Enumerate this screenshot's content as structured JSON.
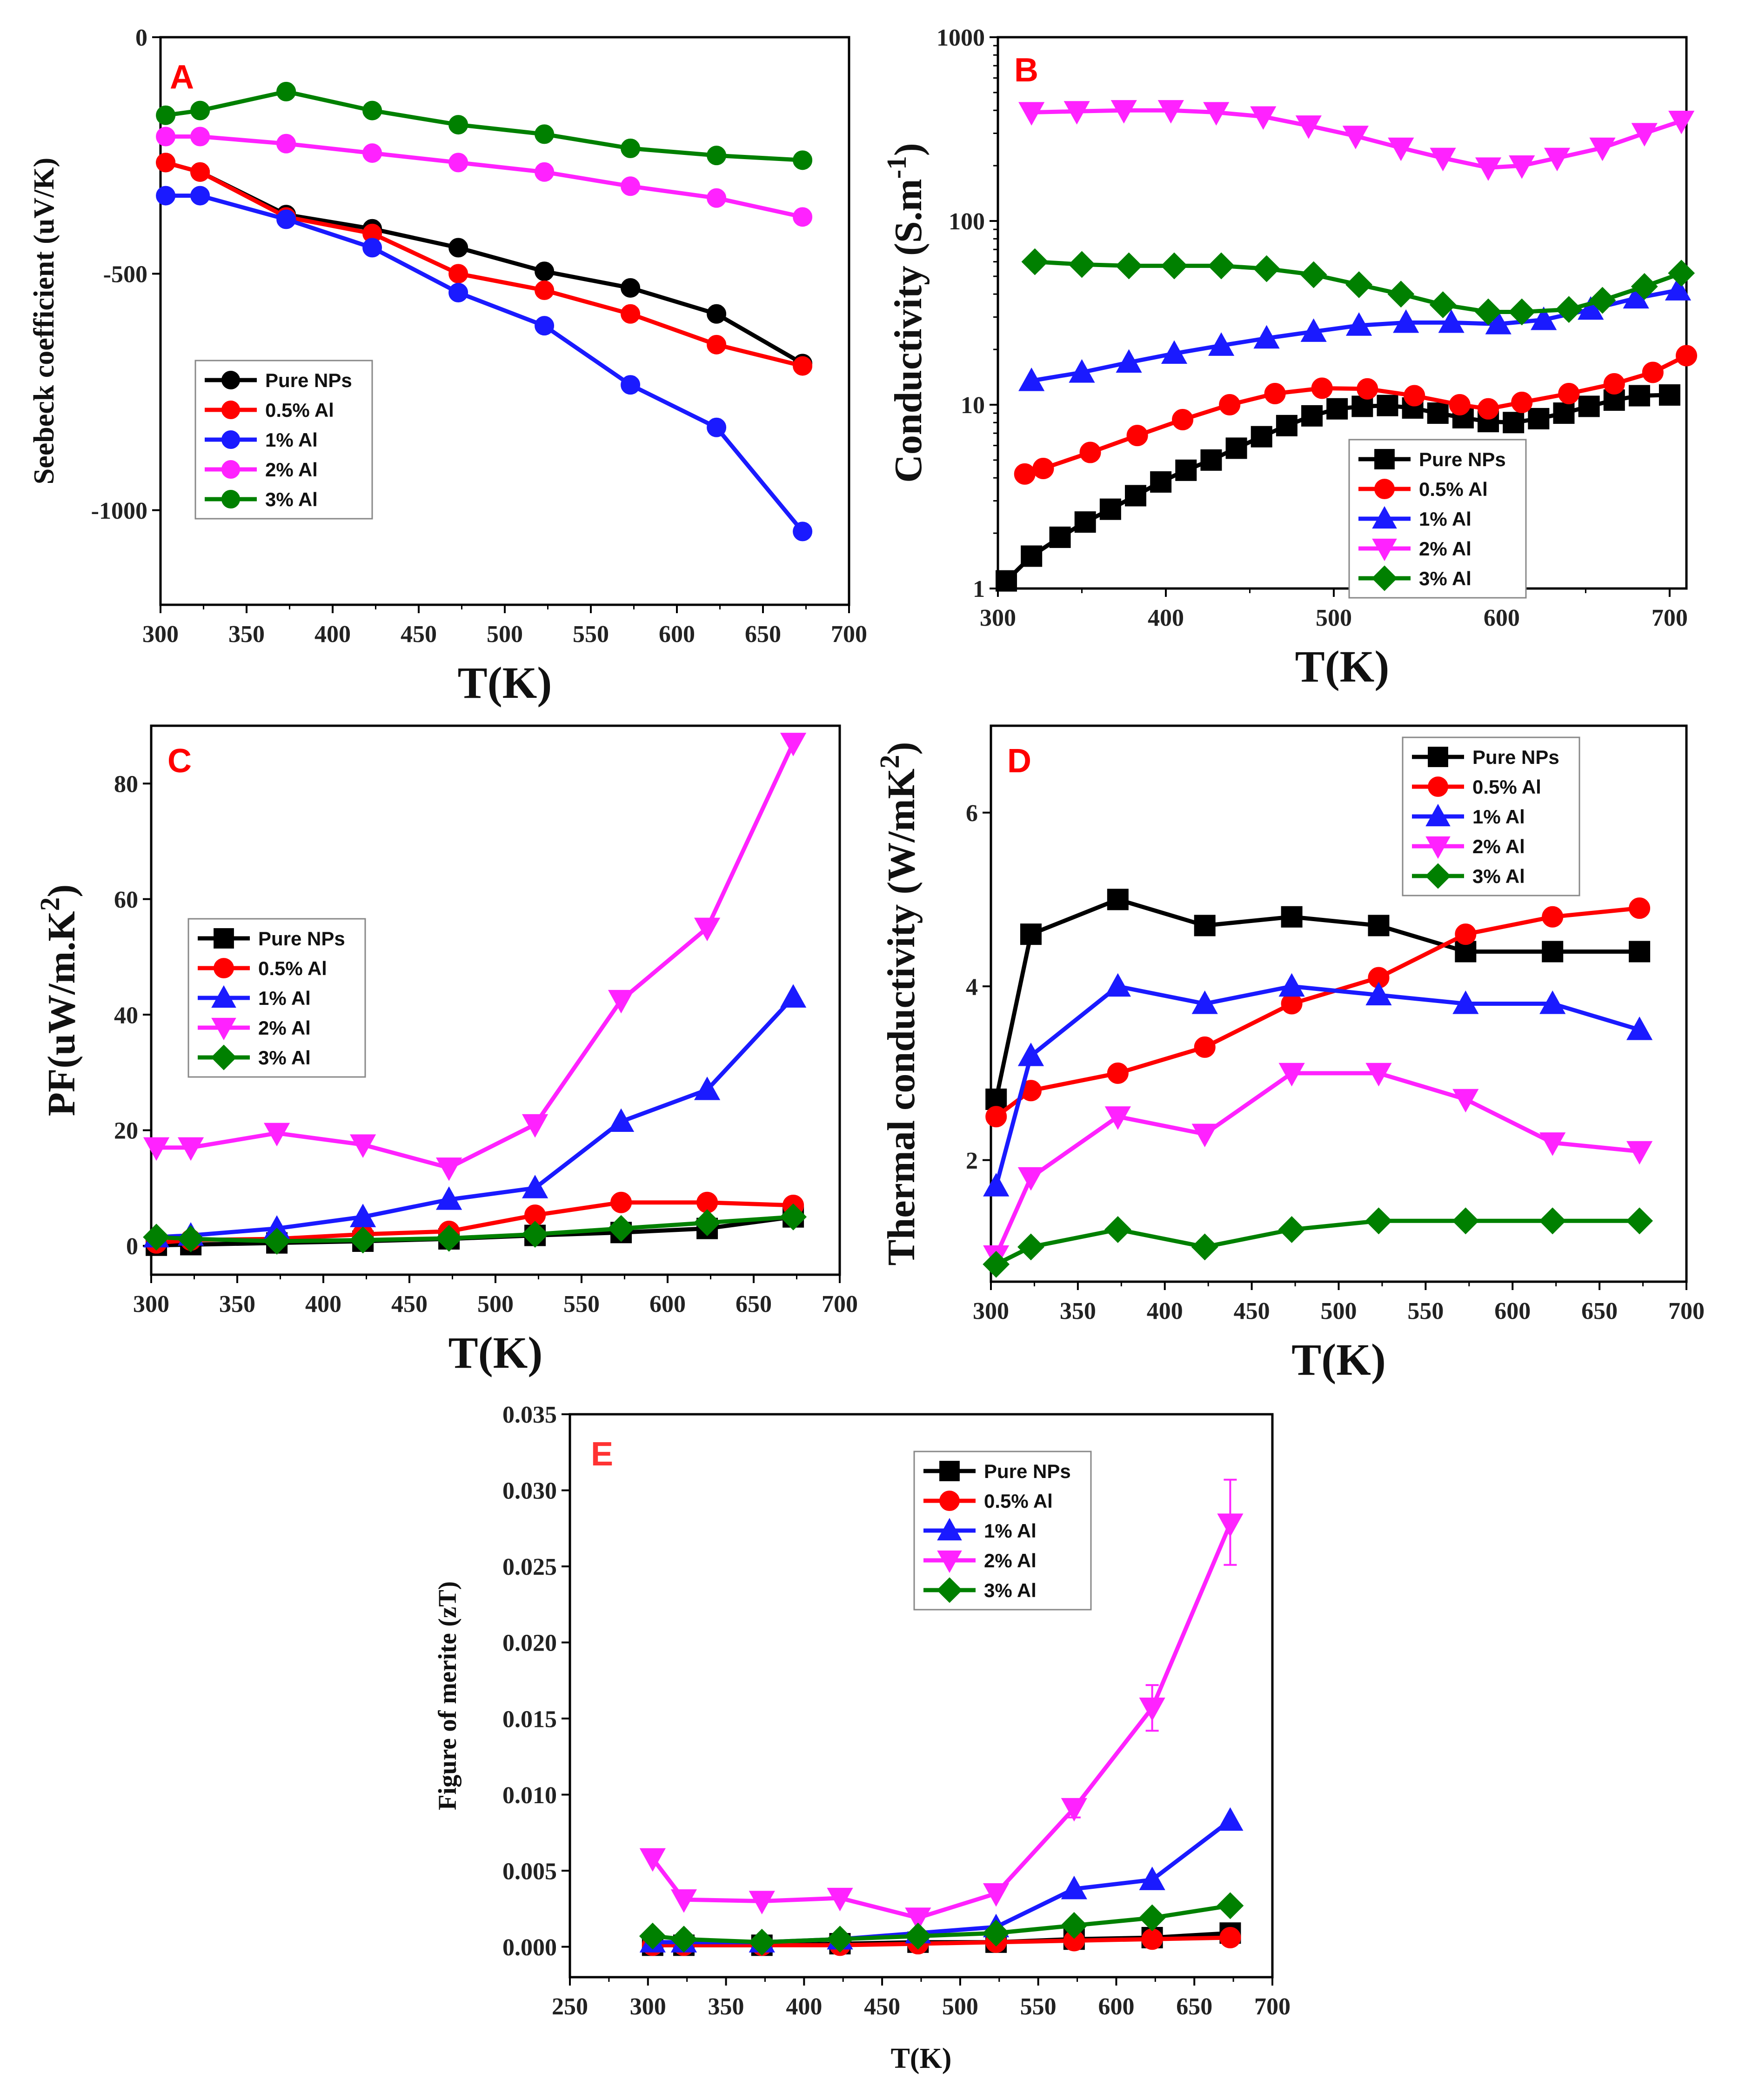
{
  "figure": {
    "colors": {
      "Pure NPs": "#000000",
      "0.5% Al": "#ff0000",
      "1% Al": "#1a1aff",
      "2% Al": "#ff22ff",
      "3% Al": "#008000"
    }
  },
  "chart_data": [
    {
      "id": "A",
      "panel_label": "A",
      "type": "line",
      "marker": "circle",
      "xlabel": "T(K)",
      "ylabel": "Seebeck coefficient (uV/K)",
      "xlim": [
        300,
        700
      ],
      "ylim": [
        -1200,
        0
      ],
      "yscale": "linear",
      "xticks": [
        300,
        350,
        400,
        450,
        500,
        550,
        600,
        650,
        700
      ],
      "yticks": [
        0,
        -500,
        -1000
      ],
      "ytick_labels": [
        "0",
        "-500",
        "-1000"
      ],
      "legend_position": "bottom-left",
      "series": [
        {
          "name": "Pure NPs",
          "x": [
            303,
            323,
            373,
            423,
            473,
            523,
            573,
            623,
            673
          ],
          "y": [
            -265,
            -285,
            -375,
            -405,
            -445,
            -495,
            -530,
            -585,
            -690
          ]
        },
        {
          "name": "0.5% Al",
          "x": [
            303,
            323,
            373,
            423,
            473,
            523,
            573,
            623,
            673
          ],
          "y": [
            -265,
            -285,
            -380,
            -415,
            -500,
            -535,
            -585,
            -650,
            -695
          ]
        },
        {
          "name": "1% Al",
          "x": [
            303,
            323,
            373,
            423,
            473,
            523,
            573,
            623,
            673
          ],
          "y": [
            -335,
            -335,
            -385,
            -445,
            -540,
            -610,
            -735,
            -825,
            -1045
          ]
        },
        {
          "name": "2% Al",
          "x": [
            303,
            323,
            373,
            423,
            473,
            523,
            573,
            623,
            673
          ],
          "y": [
            -210,
            -210,
            -225,
            -245,
            -265,
            -285,
            -315,
            -340,
            -380
          ]
        },
        {
          "name": "3% Al",
          "x": [
            303,
            323,
            373,
            423,
            473,
            523,
            573,
            623,
            673
          ],
          "y": [
            -165,
            -155,
            -115,
            -155,
            -185,
            -205,
            -235,
            -250,
            -260
          ]
        }
      ]
    },
    {
      "id": "B",
      "panel_label": "B",
      "type": "line",
      "marker": "mixed",
      "xlabel": "T(K)",
      "ylabel": "Conductivity (S.m",
      "ylabel_sup": "-1",
      "ylabel_end": ")",
      "xlim": [
        300,
        710
      ],
      "ylim": [
        1,
        1000
      ],
      "yscale": "log",
      "xticks": [
        300,
        400,
        500,
        600,
        700
      ],
      "yticks": [
        1,
        10,
        100,
        1000
      ],
      "ytick_labels": [
        "1",
        "10",
        "100",
        "1000"
      ],
      "legend_position": "bottom-right",
      "series": [
        {
          "name": "Pure NPs",
          "marker": "square",
          "x": [
            305,
            320,
            337,
            352,
            367,
            382,
            397,
            412,
            427,
            442,
            457,
            472,
            487,
            502,
            517,
            532,
            547,
            562,
            577,
            592,
            607,
            622,
            637,
            652,
            667,
            682,
            700
          ],
          "y": [
            1.1,
            1.5,
            1.9,
            2.3,
            2.7,
            3.2,
            3.8,
            4.4,
            5.0,
            5.8,
            6.7,
            7.7,
            8.7,
            9.5,
            9.8,
            9.9,
            9.6,
            9.0,
            8.5,
            8.1,
            8.0,
            8.4,
            9.0,
            9.8,
            10.6,
            11.2,
            11.3
          ]
        },
        {
          "name": "0.5% Al",
          "marker": "circle",
          "x": [
            316,
            327,
            355,
            383,
            410,
            438,
            465,
            493,
            520,
            548,
            575,
            592,
            612,
            640,
            667,
            690,
            710
          ],
          "y": [
            4.2,
            4.5,
            5.5,
            6.8,
            8.3,
            10.0,
            11.5,
            12.3,
            12.2,
            11.2,
            10.0,
            9.5,
            10.3,
            11.5,
            13.0,
            15.0,
            18.5
          ]
        },
        {
          "name": "1% Al",
          "marker": "triangle-up",
          "x": [
            320,
            350,
            378,
            405,
            433,
            460,
            488,
            515,
            543,
            570,
            598,
            625,
            653,
            680,
            705
          ],
          "y": [
            13.5,
            15.0,
            17.0,
            19.0,
            21.0,
            23.0,
            25.0,
            27.0,
            28.0,
            28.0,
            27.5,
            29.0,
            33.0,
            38.0,
            42.0
          ]
        },
        {
          "name": "2% Al",
          "marker": "triangle-down",
          "x": [
            320,
            347,
            375,
            403,
            430,
            458,
            485,
            513,
            540,
            565,
            592,
            612,
            633,
            660,
            685,
            707
          ],
          "y": [
            390,
            395,
            400,
            400,
            390,
            370,
            330,
            290,
            250,
            220,
            195,
            200,
            220,
            250,
            300,
            350
          ]
        },
        {
          "name": "3% Al",
          "marker": "diamond",
          "x": [
            322,
            350,
            378,
            405,
            433,
            460,
            488,
            515,
            540,
            565,
            592,
            612,
            640,
            660,
            685,
            707
          ],
          "y": [
            60,
            58,
            57,
            57,
            57,
            55,
            51,
            45,
            40,
            35,
            32,
            32,
            33,
            37,
            44,
            52
          ]
        }
      ]
    },
    {
      "id": "C",
      "panel_label": "C",
      "type": "line",
      "marker": "mixed",
      "xlabel": "T(K)",
      "ylabel": "PF(uW/m.K",
      "ylabel_sup": "2",
      "ylabel_end": ")",
      "xlim": [
        300,
        700
      ],
      "ylim": [
        -5,
        90
      ],
      "yscale": "linear",
      "xticks": [
        300,
        350,
        400,
        450,
        500,
        550,
        600,
        650,
        700
      ],
      "yticks": [
        0,
        20,
        40,
        60,
        80
      ],
      "ytick_labels": [
        "0",
        "20",
        "40",
        "60",
        "80"
      ],
      "legend_position": "center-left",
      "series": [
        {
          "name": "Pure NPs",
          "marker": "square",
          "x": [
            303,
            323,
            373,
            423,
            473,
            523,
            573,
            623,
            673
          ],
          "y": [
            0.1,
            0.2,
            0.5,
            0.8,
            1.2,
            1.8,
            2.3,
            3.0,
            5.0
          ]
        },
        {
          "name": "0.5% Al",
          "marker": "circle",
          "x": [
            303,
            323,
            373,
            423,
            473,
            523,
            573,
            623,
            673
          ],
          "y": [
            0.5,
            1.0,
            1.2,
            2.0,
            2.5,
            5.3,
            7.5,
            7.5,
            7.0
          ]
        },
        {
          "name": "1% Al",
          "marker": "triangle-up",
          "x": [
            303,
            323,
            373,
            423,
            473,
            523,
            573,
            623,
            673
          ],
          "y": [
            1.5,
            1.8,
            3.0,
            5.0,
            8.0,
            10.0,
            21.5,
            27.0,
            43.0
          ]
        },
        {
          "name": "2% Al",
          "marker": "triangle-down",
          "x": [
            303,
            323,
            373,
            423,
            473,
            523,
            573,
            623,
            673
          ],
          "y": [
            17.0,
            17.0,
            19.5,
            17.5,
            13.5,
            21.0,
            42.5,
            55.0,
            87.0
          ]
        },
        {
          "name": "3% Al",
          "marker": "diamond",
          "x": [
            303,
            323,
            373,
            423,
            473,
            523,
            573,
            623,
            673
          ],
          "y": [
            1.5,
            1.2,
            0.8,
            1.0,
            1.3,
            2.0,
            3.0,
            4.0,
            5.0
          ]
        }
      ]
    },
    {
      "id": "D",
      "panel_label": "D",
      "type": "line",
      "marker": "mixed",
      "xlabel": "T(K)",
      "ylabel": "Thermal conductivity (W/mK",
      "ylabel_sup": "2",
      "ylabel_end": ")",
      "xlim": [
        300,
        700
      ],
      "ylim": [
        0.6,
        7.0
      ],
      "yscale": "linear",
      "xticks": [
        300,
        350,
        400,
        450,
        500,
        550,
        600,
        650,
        700
      ],
      "yticks": [
        2,
        4,
        6
      ],
      "ytick_labels": [
        "2",
        "4",
        "6"
      ],
      "legend_position": "top-right",
      "series": [
        {
          "name": "Pure NPs",
          "marker": "square",
          "x": [
            303,
            323,
            373,
            423,
            473,
            523,
            573,
            623,
            673
          ],
          "y": [
            2.7,
            4.6,
            5.0,
            4.7,
            4.8,
            4.7,
            4.4,
            4.4,
            4.4
          ]
        },
        {
          "name": "0.5% Al",
          "marker": "circle",
          "x": [
            303,
            323,
            373,
            423,
            473,
            523,
            573,
            623,
            673
          ],
          "y": [
            2.5,
            2.8,
            3.0,
            3.3,
            3.8,
            4.1,
            4.6,
            4.8,
            4.9
          ]
        },
        {
          "name": "1% Al",
          "marker": "triangle-up",
          "x": [
            303,
            323,
            373,
            423,
            473,
            523,
            573,
            623,
            673
          ],
          "y": [
            1.7,
            3.2,
            4.0,
            3.8,
            4.0,
            3.9,
            3.8,
            3.8,
            3.5
          ]
        },
        {
          "name": "2% Al",
          "marker": "triangle-down",
          "x": [
            303,
            323,
            373,
            423,
            473,
            523,
            573,
            623,
            673
          ],
          "y": [
            0.9,
            1.8,
            2.5,
            2.3,
            3.0,
            3.0,
            2.7,
            2.2,
            2.1
          ]
        },
        {
          "name": "3% Al",
          "marker": "diamond",
          "x": [
            303,
            323,
            373,
            423,
            473,
            523,
            573,
            623,
            673
          ],
          "y": [
            0.8,
            1.0,
            1.2,
            1.0,
            1.2,
            1.3,
            1.3,
            1.3,
            1.3
          ]
        }
      ]
    },
    {
      "id": "E",
      "panel_label": "E",
      "type": "line",
      "marker": "mixed",
      "xlabel": "T(K)",
      "ylabel": "Figure of merite (zT)",
      "xlim": [
        250,
        700
      ],
      "ylim": [
        -0.002,
        0.035
      ],
      "yscale": "linear",
      "xticks": [
        250,
        300,
        350,
        400,
        450,
        500,
        550,
        600,
        650,
        700
      ],
      "yticks": [
        0.0,
        0.005,
        0.01,
        0.015,
        0.02,
        0.025,
        0.03,
        0.035
      ],
      "ytick_labels": [
        "0.000",
        "0.005",
        "0.010",
        "0.015",
        "0.020",
        "0.025",
        "0.030",
        "0.035"
      ],
      "legend_position": "top-center",
      "series": [
        {
          "name": "Pure NPs",
          "marker": "square",
          "x": [
            303,
            323,
            373,
            423,
            473,
            523,
            573,
            623,
            673
          ],
          "y": [
            0.0001,
            0.0001,
            0.0001,
            0.0002,
            0.0003,
            0.0003,
            0.0005,
            0.0006,
            0.0009
          ]
        },
        {
          "name": "0.5% Al",
          "marker": "circle",
          "x": [
            303,
            323,
            373,
            423,
            473,
            523,
            573,
            623,
            673
          ],
          "y": [
            0.0001,
            0.0001,
            0.0001,
            0.0001,
            0.0002,
            0.0003,
            0.0004,
            0.0005,
            0.0006
          ]
        },
        {
          "name": "1% Al",
          "marker": "triangle-up",
          "x": [
            303,
            323,
            373,
            423,
            473,
            523,
            573,
            623,
            673
          ],
          "y": [
            0.0003,
            0.0003,
            0.0003,
            0.0005,
            0.0009,
            0.0013,
            0.0038,
            0.0044,
            0.0083
          ]
        },
        {
          "name": "2% Al",
          "marker": "triangle-down",
          "x": [
            303,
            323,
            373,
            423,
            473,
            523,
            573,
            623,
            673
          ],
          "y": [
            0.0058,
            0.0031,
            0.003,
            0.0032,
            0.0019,
            0.0035,
            0.0091,
            0.0157,
            0.0278
          ]
        },
        {
          "name": "3% Al",
          "marker": "diamond",
          "x": [
            303,
            323,
            373,
            423,
            473,
            523,
            573,
            623,
            673
          ],
          "y": [
            0.0007,
            0.0005,
            0.0003,
            0.0005,
            0.0007,
            0.0009,
            0.0014,
            0.0019,
            0.0027
          ]
        }
      ],
      "error_bars": [
        {
          "series": "2% Al",
          "x": 673,
          "low": 0.0251,
          "high": 0.0307
        },
        {
          "series": "2% Al",
          "x": 623,
          "low": 0.0142,
          "high": 0.0172
        },
        {
          "series": "2% Al",
          "x": 573,
          "low": 0.0085,
          "high": 0.0097
        }
      ]
    }
  ]
}
